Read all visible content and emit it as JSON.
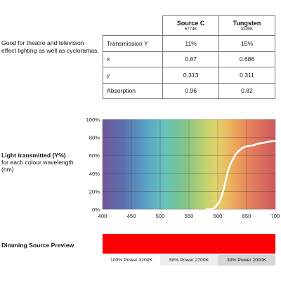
{
  "description": "Good for theatre and television effect lighting as well as cycloramas.",
  "table": {
    "sources": [
      {
        "name": "Source C",
        "temp": "6774K"
      },
      {
        "name": "Tungsten",
        "temp": "3200K"
      }
    ],
    "rows": [
      {
        "label": "Transmission Y",
        "values": [
          "11%",
          "15%"
        ]
      },
      {
        "label": "x",
        "values": [
          "0.67",
          "0.686"
        ]
      },
      {
        "label": "y",
        "values": [
          "0.313",
          "0.311"
        ]
      },
      {
        "label": "Absorption",
        "values": [
          "0.96",
          "0.82"
        ]
      }
    ]
  },
  "light_transmitted": {
    "title": "Light transmitted (Y%)",
    "subtitle": "for each colour wavelength (nm)"
  },
  "chart_data": {
    "type": "line",
    "x": [
      400,
      450,
      500,
      550,
      570,
      580,
      590,
      595,
      600,
      605,
      610,
      615,
      620,
      630,
      640,
      650,
      660,
      670,
      680,
      690,
      700
    ],
    "series": [
      {
        "values": [
          0,
          0,
          0,
          0,
          0,
          0,
          0.5,
          2,
          6,
          12,
          22,
          35,
          47,
          60,
          67,
          70,
          71,
          73,
          74,
          75.5,
          76
        ]
      }
    ],
    "xlim": [
      400,
      700
    ],
    "ylim": [
      0,
      100
    ],
    "xticks": [
      400,
      450,
      500,
      550,
      600,
      650,
      700
    ],
    "yticks": [
      0,
      20,
      40,
      60,
      80,
      100
    ],
    "ytick_labels": [
      "0%",
      "20%",
      "40%",
      "60%",
      "80%",
      "100%"
    ],
    "grid": true,
    "line_color": "#ffffff"
  },
  "dimming": {
    "label": "Dimming Source Preview",
    "color": "#ff0000",
    "options": [
      {
        "label": "100% Power 3200K",
        "bg": "#ffffff"
      },
      {
        "label": "50% Power 2700K",
        "bg": "#eeeeee"
      },
      {
        "label": "30% Power 2000K",
        "bg": "#d6d6d6"
      }
    ]
  }
}
